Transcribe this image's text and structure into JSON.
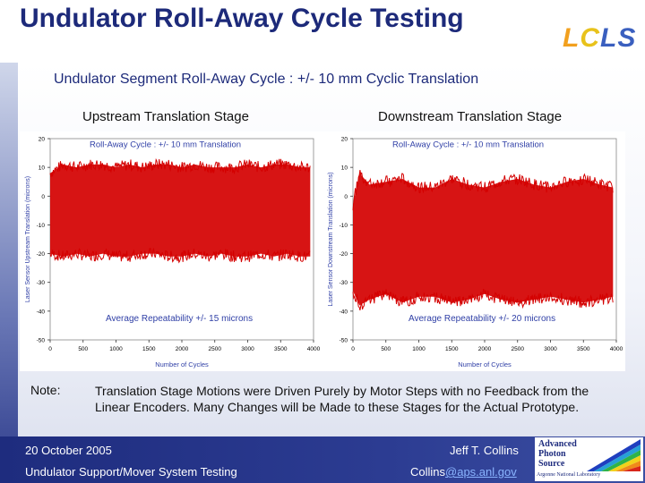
{
  "slide": {
    "title": "Undulator Roll-Away Cycle Testing",
    "logo": {
      "l1": "L",
      "l2": "C",
      "l3": "LS"
    },
    "subtitle": "Undulator Segment Roll-Away Cycle : +/- 10 mm Cyclic Translation",
    "left_heading": "Upstream Translation Stage",
    "right_heading": "Downstream Translation Stage",
    "note_label": "Note:",
    "note_text": "Translation Stage Motions were Driven Purely by Motor Steps with no Feedback from the Linear Encoders.  Many Changes will be Made to these Stages for the Actual Prototype.",
    "footer": {
      "date": "20 October  2005",
      "author": "Jeff T. Collins",
      "project": "Undulator Support/Mover System Testing",
      "email_user": "Collins",
      "email_domain": "@aps.anl.gov"
    },
    "aps_logo": {
      "text": "Advanced Photon Source",
      "subtext": "Argonne National Laboratory"
    }
  },
  "colors": {
    "signal": "#d40000",
    "title": "#1d2a7a",
    "annotation": "#2f3fa6",
    "footer": "#1e2c7e"
  },
  "chart_data": [
    {
      "type": "area",
      "title": "Roll-Away Cycle : +/- 10 mm Translation",
      "annotation": "Average Repeatability +/- 15 microns",
      "xlabel": "Number of Cycles",
      "ylabel": "Laser Sensor Upstream Translation (microns)",
      "xlim": [
        0,
        4000
      ],
      "ylim": [
        -50,
        20
      ],
      "xticks": [
        0,
        500,
        1000,
        1500,
        2000,
        2500,
        3000,
        3500,
        4000
      ],
      "yticks": [
        20,
        10,
        0,
        -10,
        -20,
        -30,
        -40,
        -50
      ],
      "grid": false,
      "series": [
        {
          "x": [
            0,
            200,
            400,
            600,
            800,
            1000,
            1200,
            1400,
            1600,
            1800,
            2000,
            2200,
            2400,
            2600,
            2800,
            3000,
            3200,
            3400,
            3600,
            3800,
            3950
          ],
          "upper": [
            8,
            11,
            10,
            11,
            11,
            10,
            11,
            10,
            11,
            11,
            10,
            11,
            10,
            10,
            10,
            11,
            10,
            11,
            11,
            10,
            10
          ],
          "lower": [
            -20,
            -21,
            -20,
            -21,
            -20,
            -21,
            -21,
            -20,
            -20,
            -21,
            -21,
            -20,
            -21,
            -20,
            -21,
            -21,
            -20,
            -21,
            -20,
            -21,
            -21
          ]
        }
      ]
    },
    {
      "type": "area",
      "title": "Roll-Away Cycle : +/- 10 mm Translation",
      "annotation": "Average Repeatability +/- 20 microns",
      "xlabel": "Number of Cycles",
      "ylabel": "Laser Sensor Downstream Translation (microns)",
      "xlim": [
        0,
        4000
      ],
      "ylim": [
        -50,
        20
      ],
      "xticks": [
        0,
        500,
        1000,
        1500,
        2000,
        2500,
        3000,
        3500,
        4000
      ],
      "yticks": [
        20,
        10,
        0,
        -10,
        -20,
        -30,
        -40,
        -50
      ],
      "grid": false,
      "series": [
        {
          "x": [
            0,
            100,
            250,
            500,
            750,
            1000,
            1250,
            1500,
            1750,
            2000,
            2250,
            2500,
            2750,
            3000,
            3250,
            3500,
            3750,
            3950
          ],
          "upper": [
            -3,
            8,
            4,
            5,
            6,
            3,
            3,
            6,
            4,
            3,
            5,
            6,
            4,
            3,
            5,
            6,
            4,
            3
          ],
          "lower": [
            -33,
            -38,
            -36,
            -34,
            -37,
            -35,
            -35,
            -37,
            -36,
            -34,
            -36,
            -37,
            -36,
            -35,
            -36,
            -37,
            -36,
            -35
          ]
        }
      ]
    }
  ]
}
